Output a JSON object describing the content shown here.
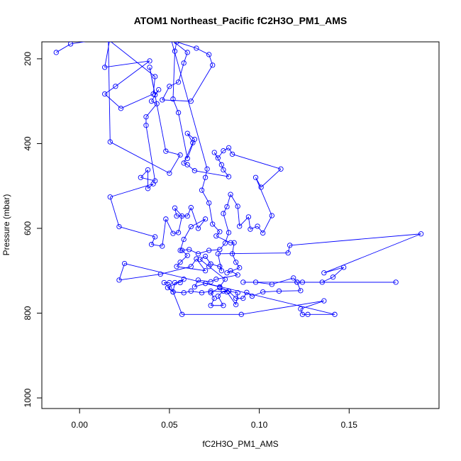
{
  "chart_data": {
    "type": "scatter",
    "title": "ATOM1 Northeast_Pacific fC2H3O_PM1_AMS",
    "xlabel": "fC2H3O_PM1_AMS",
    "ylabel": "Pressure (mbar)",
    "xlim": [
      -0.021,
      0.2
    ],
    "ylim": [
      1025,
      160
    ],
    "y_reversed": true,
    "xticks": [
      0.0,
      0.05,
      0.1,
      0.15
    ],
    "xtick_labels": [
      "0.00",
      "0.05",
      "0.10",
      "0.15"
    ],
    "yticks": [
      200,
      400,
      600,
      800,
      1000
    ],
    "ytick_labels": [
      "200",
      "400",
      "600",
      "800",
      "1000"
    ],
    "grid": false,
    "series": [
      {
        "color": "#0000ff",
        "marker": "open-circle",
        "line": true,
        "points": [
          [
            -0.013,
            185
          ],
          [
            -0.005,
            165
          ],
          [
            0.017,
            150
          ],
          [
            0.014,
            220
          ],
          [
            0.039,
            205
          ],
          [
            0.02,
            265
          ],
          [
            0.014,
            283
          ],
          [
            0.023,
            317
          ],
          [
            0.041,
            283
          ],
          [
            0.042,
            242
          ],
          [
            0.016,
            155
          ],
          [
            0.017,
            396
          ],
          [
            0.05,
            470
          ],
          [
            0.056,
            427
          ],
          [
            0.048,
            418
          ],
          [
            0.039,
            220
          ],
          [
            0.042,
            285
          ],
          [
            0.044,
            273
          ],
          [
            0.04,
            300
          ],
          [
            0.043,
            306
          ],
          [
            0.037,
            337
          ],
          [
            0.037,
            357
          ],
          [
            0.042,
            488
          ],
          [
            0.034,
            480
          ],
          [
            0.038,
            462
          ],
          [
            0.038,
            506
          ],
          [
            0.041,
            495
          ],
          [
            0.017,
            526
          ],
          [
            0.022,
            596
          ],
          [
            0.042,
            620
          ],
          [
            0.04,
            638
          ],
          [
            0.046,
            642
          ],
          [
            0.048,
            578
          ],
          [
            0.052,
            612
          ],
          [
            0.055,
            610
          ],
          [
            0.057,
            571
          ],
          [
            0.053,
            552
          ],
          [
            0.054,
            571
          ],
          [
            0.06,
            571
          ],
          [
            0.062,
            551
          ],
          [
            0.066,
            600
          ],
          [
            0.07,
            578
          ],
          [
            0.062,
            596
          ],
          [
            0.058,
            626
          ],
          [
            0.056,
            652
          ],
          [
            0.061,
            650
          ],
          [
            0.066,
            660
          ],
          [
            0.072,
            652
          ],
          [
            0.078,
            650
          ],
          [
            0.081,
            635
          ],
          [
            0.083,
            610
          ],
          [
            0.08,
            565
          ],
          [
            0.082,
            549
          ],
          [
            0.084,
            520
          ],
          [
            0.088,
            548
          ],
          [
            0.089,
            595
          ],
          [
            0.094,
            573
          ],
          [
            0.095,
            602
          ],
          [
            0.099,
            595
          ],
          [
            0.102,
            611
          ],
          [
            0.107,
            570
          ],
          [
            0.098,
            480
          ],
          [
            0.101,
            503
          ],
          [
            0.112,
            460
          ],
          [
            0.085,
            425
          ],
          [
            0.083,
            410
          ],
          [
            0.08,
            417
          ],
          [
            0.077,
            434
          ],
          [
            0.075,
            421
          ],
          [
            0.079,
            450
          ],
          [
            0.08,
            462
          ],
          [
            0.083,
            478
          ],
          [
            0.064,
            464
          ],
          [
            0.06,
            450
          ],
          [
            0.058,
            446
          ],
          [
            0.063,
            398
          ],
          [
            0.06,
            376
          ],
          [
            0.064,
            390
          ],
          [
            0.06,
            435
          ],
          [
            0.055,
            327
          ],
          [
            0.052,
            295
          ],
          [
            0.053,
            182
          ],
          [
            0.054,
            160
          ],
          [
            0.065,
            175
          ],
          [
            0.072,
            190
          ],
          [
            0.074,
            215
          ],
          [
            0.062,
            300
          ],
          [
            0.046,
            297
          ],
          [
            0.05,
            265
          ],
          [
            0.055,
            255
          ],
          [
            0.058,
            210
          ],
          [
            0.06,
            185
          ],
          [
            0.051,
            155
          ],
          [
            0.071,
            460
          ],
          [
            0.07,
            480
          ],
          [
            0.068,
            510
          ],
          [
            0.072,
            540
          ],
          [
            0.074,
            590
          ],
          [
            0.078,
            608
          ],
          [
            0.076,
            618
          ],
          [
            0.084,
            634
          ],
          [
            0.086,
            634
          ],
          [
            0.085,
            660
          ],
          [
            0.087,
            680
          ],
          [
            0.089,
            693
          ],
          [
            0.082,
            705
          ],
          [
            0.084,
            700
          ],
          [
            0.088,
            710
          ],
          [
            0.076,
            720
          ],
          [
            0.073,
            726
          ],
          [
            0.066,
            722
          ],
          [
            0.064,
            738
          ],
          [
            0.07,
            730
          ],
          [
            0.078,
            738
          ],
          [
            0.081,
            720
          ],
          [
            0.072,
            690
          ],
          [
            0.067,
            673
          ],
          [
            0.07,
            666
          ],
          [
            0.073,
            684
          ],
          [
            0.078,
            690
          ],
          [
            0.079,
            700
          ],
          [
            0.077,
            660
          ],
          [
            0.116,
            658
          ],
          [
            0.117,
            640
          ],
          [
            0.19,
            613
          ],
          [
            0.136,
            705
          ],
          [
            0.147,
            692
          ],
          [
            0.141,
            715
          ],
          [
            0.135,
            727
          ],
          [
            0.124,
            727
          ],
          [
            0.121,
            727
          ],
          [
            0.176,
            727
          ],
          [
            0.091,
            727
          ],
          [
            0.098,
            727
          ],
          [
            0.107,
            732
          ],
          [
            0.119,
            717
          ],
          [
            0.121,
            727
          ],
          [
            0.123,
            747
          ],
          [
            0.111,
            748
          ],
          [
            0.102,
            750
          ],
          [
            0.096,
            760
          ],
          [
            0.093,
            751
          ],
          [
            0.091,
            765
          ],
          [
            0.087,
            765
          ],
          [
            0.083,
            748
          ],
          [
            0.08,
            748
          ],
          [
            0.077,
            760
          ],
          [
            0.08,
            782
          ],
          [
            0.073,
            782
          ],
          [
            0.075,
            765
          ],
          [
            0.073,
            752
          ],
          [
            0.078,
            740
          ],
          [
            0.083,
            748
          ],
          [
            0.088,
            752
          ],
          [
            0.087,
            780
          ],
          [
            0.082,
            750
          ],
          [
            0.073,
            748
          ],
          [
            0.068,
            752
          ],
          [
            0.062,
            748
          ],
          [
            0.058,
            752
          ],
          [
            0.052,
            750
          ],
          [
            0.053,
            728
          ],
          [
            0.056,
            728
          ],
          [
            0.058,
            720
          ],
          [
            0.049,
            740
          ],
          [
            0.052,
            750
          ],
          [
            0.047,
            728
          ],
          [
            0.05,
            728
          ],
          [
            0.057,
            803
          ],
          [
            0.09,
            803
          ],
          [
            0.136,
            771
          ],
          [
            0.123,
            790
          ],
          [
            0.124,
            803
          ],
          [
            0.127,
            803
          ],
          [
            0.142,
            803
          ],
          [
            0.025,
            683
          ],
          [
            0.022,
            722
          ],
          [
            0.045,
            708
          ],
          [
            0.062,
            690
          ],
          [
            0.065,
            672
          ],
          [
            0.07,
            700
          ],
          [
            0.054,
            690
          ],
          [
            0.056,
            680
          ],
          [
            0.06,
            664
          ],
          [
            0.057,
            652
          ]
        ]
      }
    ]
  }
}
